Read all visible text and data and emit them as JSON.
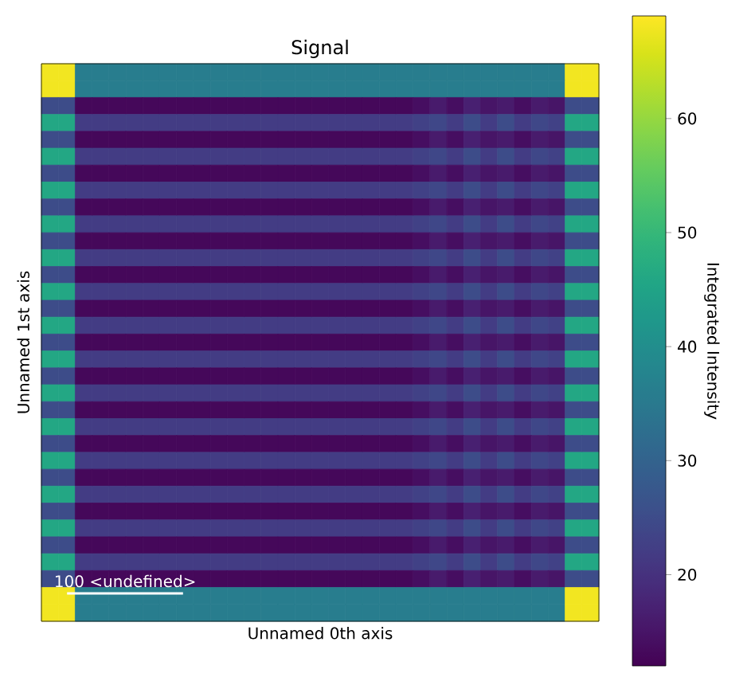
{
  "chart_data": {
    "type": "heatmap",
    "title": "Signal",
    "xlabel": "Unnamed 0th axis",
    "ylabel": "Unnamed 1st axis",
    "clabel": "Integrated Intensity",
    "categories": [
      null,
      null,
      null,
      null,
      null,
      null,
      null,
      null,
      null,
      null,
      null,
      null,
      null,
      null,
      null,
      null,
      null,
      null,
      null,
      null,
      null,
      null,
      null,
      null,
      null,
      null,
      null,
      null,
      null,
      null,
      null,
      null,
      null
    ],
    "y_categories": [
      null,
      null,
      null,
      null,
      null,
      null,
      null,
      null,
      null,
      null,
      null,
      null,
      null,
      null,
      null,
      null,
      null,
      null,
      null,
      null,
      null,
      null,
      null,
      null,
      null,
      null,
      null,
      null,
      null,
      null,
      null,
      null,
      null
    ],
    "cells": [
      [
        68,
        68,
        36,
        36,
        36,
        36,
        36,
        36,
        36,
        36,
        36,
        36,
        36,
        36,
        36,
        36,
        36,
        36,
        36,
        36,
        36,
        36,
        36,
        36,
        36,
        36,
        36,
        36,
        36,
        36,
        36,
        68,
        68
      ],
      [
        68,
        68,
        36,
        36,
        36,
        36,
        36,
        36,
        36,
        36,
        36,
        36,
        36,
        36,
        36,
        36,
        36,
        36,
        36,
        36,
        36,
        36,
        36,
        36,
        36,
        36,
        36,
        36,
        36,
        36,
        36,
        68,
        68
      ],
      [
        25,
        25,
        13,
        13,
        13,
        13,
        13,
        13,
        13,
        13,
        13,
        13,
        13,
        13,
        13,
        13,
        13,
        13,
        13,
        13,
        13,
        13,
        14,
        16,
        14,
        17,
        15,
        16,
        14,
        16,
        15,
        25,
        25
      ],
      [
        46,
        46,
        22,
        22,
        22,
        22,
        22,
        22,
        22,
        22,
        22,
        22,
        22,
        22,
        22,
        22,
        22,
        22,
        22,
        22,
        22,
        22,
        23,
        24,
        22,
        25,
        22,
        25,
        22,
        24,
        23,
        46,
        46
      ],
      [
        25,
        25,
        13,
        13,
        13,
        13,
        13,
        13,
        13,
        13,
        13,
        13,
        13,
        13,
        13,
        13,
        13,
        13,
        13,
        13,
        13,
        13,
        14,
        16,
        14,
        17,
        15,
        16,
        14,
        16,
        15,
        25,
        25
      ],
      [
        46,
        46,
        22,
        22,
        22,
        22,
        22,
        22,
        22,
        22,
        22,
        22,
        22,
        22,
        22,
        22,
        22,
        22,
        22,
        22,
        22,
        22,
        23,
        24,
        22,
        25,
        22,
        25,
        22,
        24,
        23,
        46,
        46
      ],
      [
        25,
        25,
        13,
        13,
        13,
        13,
        13,
        13,
        13,
        13,
        13,
        13,
        13,
        13,
        13,
        13,
        13,
        13,
        13,
        13,
        13,
        13,
        14,
        16,
        14,
        17,
        15,
        16,
        14,
        16,
        15,
        25,
        25
      ],
      [
        46,
        46,
        22,
        22,
        22,
        22,
        22,
        22,
        22,
        22,
        22,
        22,
        22,
        22,
        22,
        22,
        22,
        22,
        22,
        22,
        22,
        22,
        23,
        24,
        22,
        25,
        22,
        25,
        22,
        24,
        23,
        46,
        46
      ],
      [
        25,
        25,
        13,
        13,
        13,
        13,
        13,
        13,
        13,
        13,
        13,
        13,
        13,
        13,
        13,
        13,
        13,
        13,
        13,
        13,
        13,
        13,
        14,
        16,
        14,
        17,
        15,
        16,
        14,
        16,
        15,
        25,
        25
      ],
      [
        46,
        46,
        22,
        22,
        22,
        22,
        22,
        22,
        22,
        22,
        22,
        22,
        22,
        22,
        22,
        22,
        22,
        22,
        22,
        22,
        22,
        22,
        23,
        24,
        22,
        25,
        22,
        25,
        22,
        24,
        23,
        46,
        46
      ],
      [
        25,
        25,
        13,
        13,
        13,
        13,
        13,
        13,
        13,
        13,
        13,
        13,
        13,
        13,
        13,
        13,
        13,
        13,
        13,
        13,
        13,
        13,
        14,
        16,
        14,
        17,
        15,
        16,
        14,
        16,
        15,
        25,
        25
      ],
      [
        46,
        46,
        22,
        22,
        22,
        22,
        22,
        22,
        22,
        22,
        22,
        22,
        22,
        22,
        22,
        22,
        22,
        22,
        22,
        22,
        22,
        22,
        23,
        24,
        22,
        25,
        22,
        25,
        22,
        24,
        23,
        46,
        46
      ],
      [
        25,
        25,
        13,
        13,
        13,
        13,
        13,
        13,
        13,
        13,
        13,
        13,
        13,
        13,
        13,
        13,
        13,
        13,
        13,
        13,
        13,
        13,
        14,
        16,
        14,
        17,
        15,
        16,
        14,
        16,
        15,
        25,
        25
      ],
      [
        46,
        46,
        22,
        22,
        22,
        22,
        22,
        22,
        22,
        22,
        22,
        22,
        22,
        22,
        22,
        22,
        22,
        22,
        22,
        22,
        22,
        22,
        23,
        24,
        22,
        25,
        22,
        25,
        22,
        24,
        23,
        46,
        46
      ],
      [
        25,
        25,
        13,
        13,
        13,
        13,
        13,
        13,
        13,
        13,
        13,
        13,
        13,
        13,
        13,
        13,
        13,
        13,
        13,
        13,
        13,
        13,
        14,
        16,
        14,
        17,
        15,
        16,
        14,
        16,
        15,
        25,
        25
      ],
      [
        46,
        46,
        22,
        22,
        22,
        22,
        22,
        22,
        22,
        22,
        22,
        22,
        22,
        22,
        22,
        22,
        22,
        22,
        22,
        22,
        22,
        22,
        23,
        24,
        22,
        25,
        22,
        25,
        22,
        24,
        23,
        46,
        46
      ],
      [
        25,
        25,
        13,
        13,
        13,
        13,
        13,
        13,
        13,
        13,
        13,
        13,
        13,
        13,
        13,
        13,
        13,
        13,
        13,
        13,
        13,
        13,
        14,
        16,
        14,
        17,
        15,
        16,
        14,
        16,
        15,
        25,
        25
      ],
      [
        46,
        46,
        22,
        22,
        22,
        22,
        22,
        22,
        22,
        22,
        22,
        22,
        22,
        22,
        22,
        22,
        22,
        22,
        22,
        22,
        22,
        22,
        23,
        24,
        22,
        25,
        22,
        25,
        22,
        24,
        23,
        46,
        46
      ],
      [
        25,
        25,
        13,
        13,
        13,
        13,
        13,
        13,
        13,
        13,
        13,
        13,
        13,
        13,
        13,
        13,
        13,
        13,
        13,
        13,
        13,
        13,
        14,
        16,
        14,
        17,
        15,
        16,
        14,
        16,
        15,
        25,
        25
      ],
      [
        46,
        46,
        22,
        22,
        22,
        22,
        22,
        22,
        22,
        22,
        22,
        22,
        22,
        22,
        22,
        22,
        22,
        22,
        22,
        22,
        22,
        22,
        23,
        24,
        22,
        25,
        22,
        25,
        22,
        24,
        23,
        46,
        46
      ],
      [
        25,
        25,
        13,
        13,
        13,
        13,
        13,
        13,
        13,
        13,
        13,
        13,
        13,
        13,
        13,
        13,
        13,
        13,
        13,
        13,
        13,
        13,
        14,
        16,
        14,
        17,
        15,
        16,
        14,
        16,
        15,
        25,
        25
      ],
      [
        46,
        46,
        22,
        22,
        22,
        22,
        22,
        22,
        22,
        22,
        22,
        22,
        22,
        22,
        22,
        22,
        22,
        22,
        22,
        22,
        22,
        22,
        23,
        24,
        22,
        25,
        22,
        25,
        22,
        24,
        23,
        46,
        46
      ],
      [
        25,
        25,
        13,
        13,
        13,
        13,
        13,
        13,
        13,
        13,
        13,
        13,
        13,
        13,
        13,
        13,
        13,
        13,
        13,
        13,
        13,
        13,
        14,
        16,
        14,
        17,
        15,
        16,
        14,
        16,
        15,
        25,
        25
      ],
      [
        46,
        46,
        22,
        22,
        22,
        22,
        22,
        22,
        22,
        22,
        22,
        22,
        22,
        22,
        22,
        22,
        22,
        22,
        22,
        22,
        22,
        22,
        23,
        24,
        22,
        25,
        22,
        25,
        22,
        24,
        23,
        46,
        46
      ],
      [
        25,
        25,
        13,
        13,
        13,
        13,
        13,
        13,
        13,
        13,
        13,
        13,
        13,
        13,
        13,
        13,
        13,
        13,
        13,
        13,
        13,
        13,
        14,
        16,
        14,
        17,
        15,
        16,
        14,
        16,
        15,
        25,
        25
      ],
      [
        46,
        46,
        22,
        22,
        22,
        22,
        22,
        22,
        22,
        22,
        22,
        22,
        22,
        22,
        22,
        22,
        22,
        22,
        22,
        22,
        22,
        22,
        23,
        24,
        22,
        25,
        22,
        25,
        22,
        24,
        23,
        46,
        46
      ],
      [
        25,
        25,
        13,
        13,
        13,
        13,
        13,
        13,
        13,
        13,
        13,
        13,
        13,
        13,
        13,
        13,
        13,
        13,
        13,
        13,
        13,
        13,
        14,
        16,
        14,
        17,
        15,
        16,
        14,
        16,
        15,
        25,
        25
      ],
      [
        46,
        46,
        22,
        22,
        22,
        22,
        22,
        22,
        22,
        22,
        22,
        22,
        22,
        22,
        22,
        22,
        22,
        22,
        22,
        22,
        22,
        22,
        23,
        24,
        22,
        25,
        22,
        25,
        22,
        24,
        23,
        46,
        46
      ],
      [
        25,
        25,
        13,
        13,
        13,
        13,
        13,
        13,
        13,
        13,
        13,
        13,
        13,
        13,
        13,
        13,
        13,
        13,
        13,
        13,
        13,
        13,
        14,
        16,
        14,
        17,
        15,
        16,
        14,
        16,
        15,
        25,
        25
      ],
      [
        46,
        46,
        22,
        22,
        22,
        22,
        22,
        22,
        22,
        22,
        22,
        22,
        22,
        22,
        22,
        22,
        22,
        22,
        22,
        22,
        22,
        22,
        23,
        24,
        22,
        25,
        22,
        25,
        22,
        24,
        23,
        46,
        46
      ],
      [
        25,
        25,
        13,
        13,
        13,
        13,
        13,
        13,
        13,
        13,
        13,
        13,
        13,
        13,
        13,
        13,
        13,
        13,
        13,
        13,
        13,
        13,
        14,
        16,
        14,
        17,
        15,
        16,
        14,
        16,
        15,
        25,
        25
      ],
      [
        68,
        68,
        36,
        36,
        36,
        36,
        36,
        36,
        36,
        36,
        36,
        36,
        36,
        36,
        36,
        36,
        36,
        36,
        36,
        36,
        36,
        36,
        36,
        36,
        36,
        36,
        36,
        36,
        36,
        36,
        36,
        68,
        68
      ],
      [
        68,
        68,
        36,
        36,
        36,
        36,
        36,
        36,
        36,
        36,
        36,
        36,
        36,
        36,
        36,
        36,
        36,
        36,
        36,
        36,
        36,
        36,
        36,
        36,
        36,
        36,
        36,
        36,
        36,
        36,
        36,
        68,
        68
      ]
    ],
    "clim": [
      12,
      69
    ],
    "cticks": [
      20,
      30,
      40,
      50,
      60
    ],
    "annotations": [
      "100 <undefined>"
    ]
  }
}
